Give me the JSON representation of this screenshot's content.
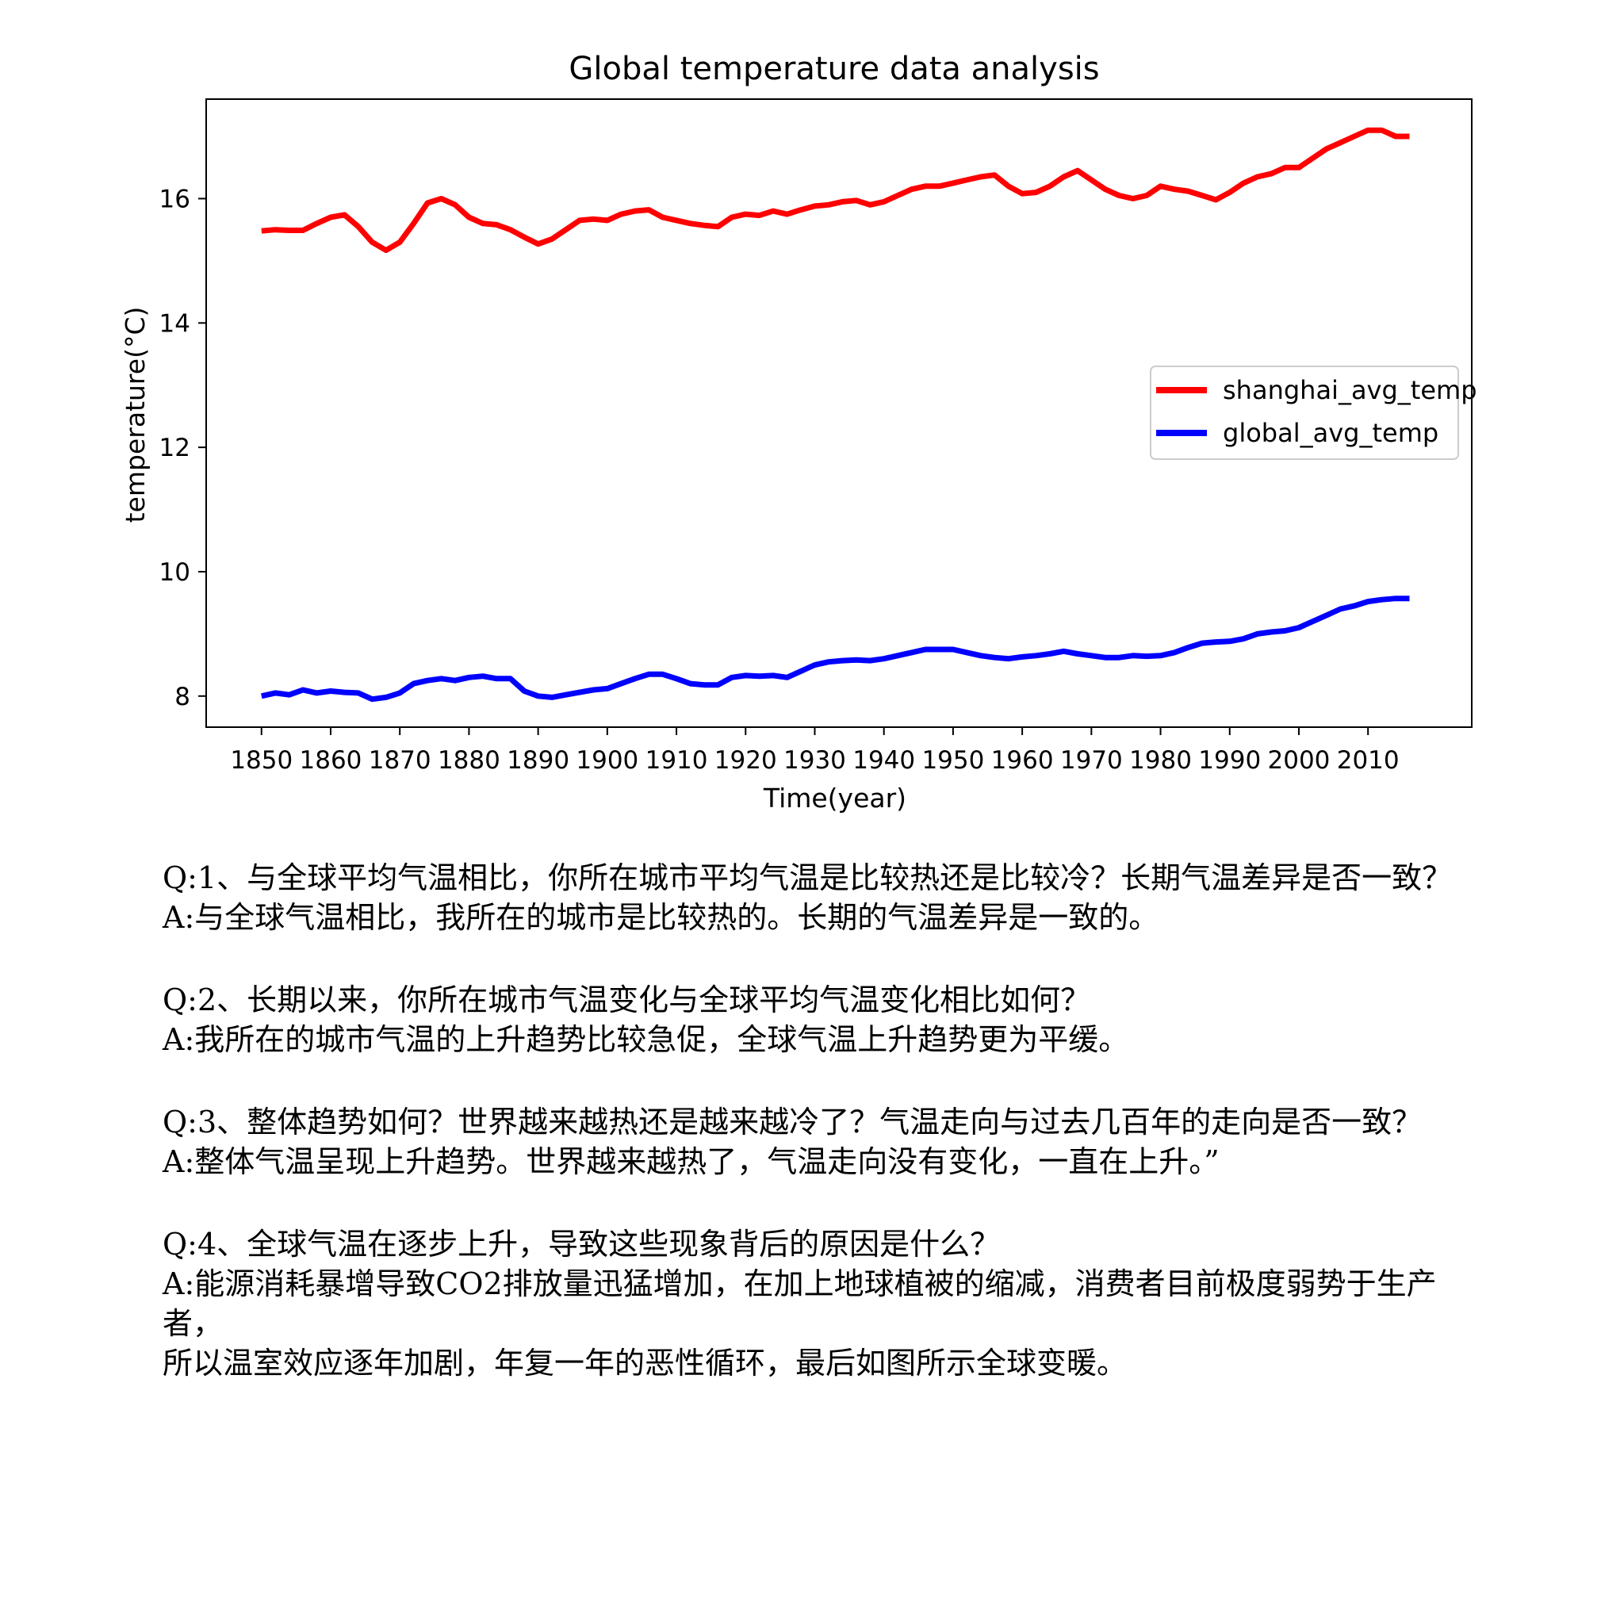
{
  "chart_data": {
    "type": "line",
    "title": "Global temperature data analysis",
    "xlabel": "Time(year)",
    "ylabel": "temperature(°C)",
    "xlim": [
      1842,
      2025
    ],
    "ylim": [
      7.5,
      17.6
    ],
    "xticks": [
      1850,
      1860,
      1870,
      1880,
      1890,
      1900,
      1910,
      1920,
      1930,
      1940,
      1950,
      1960,
      1970,
      1980,
      1990,
      2000,
      2010
    ],
    "yticks": [
      8,
      10,
      12,
      14,
      16
    ],
    "legend_position": "center-right",
    "grid": false,
    "series": [
      {
        "name": "shanghai_avg_temp",
        "color": "#ff0000",
        "x": [
          1850,
          1852,
          1854,
          1856,
          1858,
          1860,
          1862,
          1864,
          1866,
          1868,
          1870,
          1872,
          1874,
          1876,
          1878,
          1880,
          1882,
          1884,
          1886,
          1888,
          1890,
          1892,
          1894,
          1896,
          1898,
          1900,
          1902,
          1904,
          1906,
          1908,
          1910,
          1912,
          1914,
          1916,
          1918,
          1920,
          1922,
          1924,
          1926,
          1928,
          1930,
          1932,
          1934,
          1936,
          1938,
          1940,
          1942,
          1944,
          1946,
          1948,
          1950,
          1952,
          1954,
          1956,
          1958,
          1960,
          1962,
          1964,
          1966,
          1968,
          1970,
          1972,
          1974,
          1976,
          1978,
          1980,
          1982,
          1984,
          1986,
          1988,
          1990,
          1992,
          1994,
          1996,
          1998,
          2000,
          2002,
          2004,
          2006,
          2008,
          2010,
          2012,
          2014,
          2016
        ],
        "values": [
          15.48,
          15.5,
          15.49,
          15.49,
          15.6,
          15.7,
          15.74,
          15.55,
          15.3,
          15.17,
          15.3,
          15.6,
          15.93,
          16.0,
          15.9,
          15.7,
          15.6,
          15.58,
          15.5,
          15.38,
          15.27,
          15.35,
          15.5,
          15.65,
          15.67,
          15.65,
          15.75,
          15.8,
          15.82,
          15.7,
          15.65,
          15.6,
          15.57,
          15.55,
          15.7,
          15.75,
          15.73,
          15.8,
          15.75,
          15.82,
          15.88,
          15.9,
          15.95,
          15.97,
          15.9,
          15.95,
          16.05,
          16.15,
          16.2,
          16.2,
          16.25,
          16.3,
          16.35,
          16.38,
          16.2,
          16.08,
          16.1,
          16.2,
          16.35,
          16.45,
          16.3,
          16.15,
          16.05,
          16.0,
          16.05,
          16.2,
          16.15,
          16.12,
          16.05,
          15.98,
          16.1,
          16.25,
          16.35,
          16.4,
          16.5,
          16.5,
          16.65,
          16.8,
          16.9,
          17.0,
          17.1,
          17.1,
          17.0,
          17.0
        ]
      },
      {
        "name": "global_avg_temp",
        "color": "#0000ff",
        "x": [
          1850,
          1852,
          1854,
          1856,
          1858,
          1860,
          1862,
          1864,
          1866,
          1868,
          1870,
          1872,
          1874,
          1876,
          1878,
          1880,
          1882,
          1884,
          1886,
          1888,
          1890,
          1892,
          1894,
          1896,
          1898,
          1900,
          1902,
          1904,
          1906,
          1908,
          1910,
          1912,
          1914,
          1916,
          1918,
          1920,
          1922,
          1924,
          1926,
          1928,
          1930,
          1932,
          1934,
          1936,
          1938,
          1940,
          1942,
          1944,
          1946,
          1948,
          1950,
          1952,
          1954,
          1956,
          1958,
          1960,
          1962,
          1964,
          1966,
          1968,
          1970,
          1972,
          1974,
          1976,
          1978,
          1980,
          1982,
          1984,
          1986,
          1988,
          1990,
          1992,
          1994,
          1996,
          1998,
          2000,
          2002,
          2004,
          2006,
          2008,
          2010,
          2012,
          2014,
          2016
        ],
        "values": [
          8.0,
          8.05,
          8.02,
          8.1,
          8.05,
          8.08,
          8.06,
          8.05,
          7.95,
          7.98,
          8.05,
          8.2,
          8.25,
          8.28,
          8.25,
          8.3,
          8.32,
          8.28,
          8.28,
          8.08,
          8.0,
          7.98,
          8.02,
          8.06,
          8.1,
          8.12,
          8.2,
          8.28,
          8.35,
          8.35,
          8.28,
          8.2,
          8.18,
          8.18,
          8.3,
          8.33,
          8.32,
          8.33,
          8.3,
          8.4,
          8.5,
          8.55,
          8.57,
          8.58,
          8.57,
          8.6,
          8.65,
          8.7,
          8.75,
          8.75,
          8.75,
          8.7,
          8.65,
          8.62,
          8.6,
          8.63,
          8.65,
          8.68,
          8.72,
          8.68,
          8.65,
          8.62,
          8.62,
          8.65,
          8.64,
          8.65,
          8.7,
          8.78,
          8.85,
          8.87,
          8.88,
          8.92,
          9.0,
          9.03,
          9.05,
          9.1,
          9.2,
          9.3,
          9.4,
          9.45,
          9.52,
          9.55,
          9.57,
          9.57
        ]
      }
    ]
  },
  "qa": [
    {
      "question": "Q:1、与全球平均气温相比，你所在城市平均气温是比较热还是比较冷？长期气温差异是否一致？",
      "answer": [
        "A:与全球气温相比，我所在的城市是比较热的。长期的气温差异是一致的。"
      ]
    },
    {
      "question": "Q:2、长期以来，你所在城市气温变化与全球平均气温变化相比如何？",
      "answer": [
        "A:我所在的城市气温的上升趋势比较急促，全球气温上升趋势更为平缓。"
      ]
    },
    {
      "question": "Q:3、整体趋势如何？世界越来越热还是越来越冷了？气温走向与过去几百年的走向是否一致？",
      "answer": [
        "A:整体气温呈现上升趋势。世界越来越热了，气温走向没有变化，一直在上升。”"
      ]
    },
    {
      "question": "Q:4、全球气温在逐步上升，导致这些现象背后的原因是什么？",
      "answer": [
        "A:能源消耗暴增导致CO2排放量迅猛增加，在加上地球植被的缩减，消费者目前极度弱势于生产者，",
        "所以温室效应逐年加剧，年复一年的恶性循环，最后如图所示全球变暖。"
      ]
    }
  ]
}
